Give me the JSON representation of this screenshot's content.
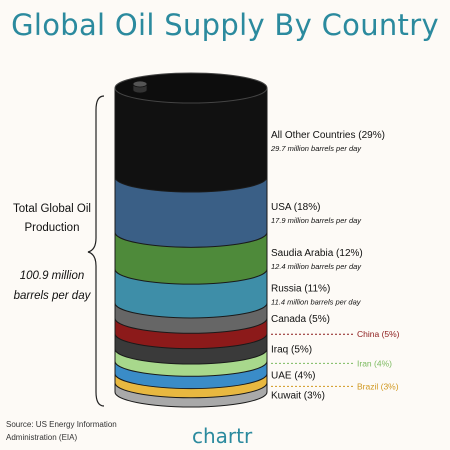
{
  "title": "Global Oil Supply By Country",
  "total": {
    "label_line1": "Total Global Oil",
    "label_line2": "Production",
    "value_line1": "100.9 million",
    "value_line2": "barrels per day"
  },
  "source": {
    "line1": "Source: US Energy Information",
    "line2": "Administration (EIA)"
  },
  "brand": "chartr",
  "colors": {
    "title": "#2b8a9e",
    "outline": "#1a1a1a"
  },
  "chart_data": {
    "type": "stacked-cylinder",
    "title": "Global Oil Supply By Country",
    "unit": "million barrels per day",
    "total": 100.9,
    "series": [
      {
        "name": "All Other Countries",
        "percent": 29,
        "value": 29.7,
        "label": "All Other Countries (29%)",
        "sublabel": "29.7 million barrels per day",
        "color": "#111111",
        "label_color": "#111111",
        "label_side": "right"
      },
      {
        "name": "USA",
        "percent": 18,
        "value": 17.9,
        "label": "USA (18%)",
        "sublabel": "17.9 million barrels per day",
        "color": "#3a5f86",
        "label_color": "#2a4f7a",
        "label_side": "right"
      },
      {
        "name": "Saudia Arabia",
        "percent": 12,
        "value": 12.4,
        "label": "Saudia Arabia (12%)",
        "sublabel": "12.4 million barrels per day",
        "color": "#4e8a3a",
        "label_color": "#3f7a2c",
        "label_side": "right"
      },
      {
        "name": "Russia",
        "percent": 11,
        "value": 11.4,
        "label": "Russia (11%)",
        "sublabel": "11.4 million barrels per day",
        "color": "#3e8ea8",
        "label_color": "#2e7e98",
        "label_side": "right"
      },
      {
        "name": "Canada",
        "percent": 5,
        "label": "Canada (5%)",
        "color": "#666666",
        "label_color": "#333333",
        "label_side": "right"
      },
      {
        "name": "China",
        "percent": 5,
        "label": "China (5%)",
        "color": "#8c1a1a",
        "label_color": "#8c1a1a",
        "label_side": "far"
      },
      {
        "name": "Iraq",
        "percent": 5,
        "label": "Iraq (5%)",
        "color": "#3a3a3a",
        "label_color": "#333333",
        "label_side": "right"
      },
      {
        "name": "Iran",
        "percent": 4,
        "label": "Iran (4%)",
        "color": "#a8d88c",
        "label_color": "#7cba60",
        "label_side": "far"
      },
      {
        "name": "UAE",
        "percent": 4,
        "label": "UAE (4%)",
        "color": "#3a8cc8",
        "label_color": "#2a78b4",
        "label_side": "right"
      },
      {
        "name": "Brazil",
        "percent": 3,
        "label": "Brazil (3%)",
        "color": "#e8b840",
        "label_color": "#d09820",
        "label_side": "far"
      },
      {
        "name": "Kuwait",
        "percent": 3,
        "label": "Kuwait (3%)",
        "color": "#a9a9a9",
        "label_color": "#333333",
        "label_side": "right"
      }
    ]
  }
}
